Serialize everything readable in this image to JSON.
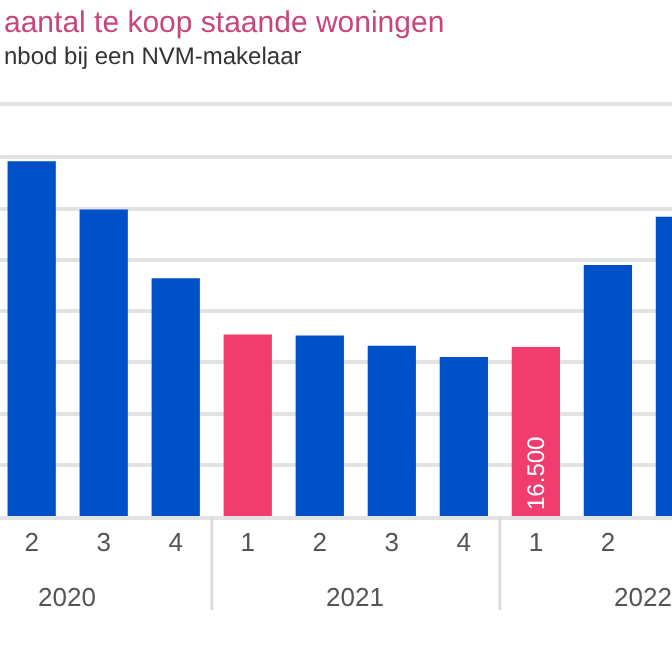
{
  "chart_data": {
    "type": "bar",
    "title": "aantal te koop staande woningen",
    "subtitle": "nbod bij een NVM-makelaar",
    "categories": [
      "2",
      "3",
      "4",
      "1",
      "2",
      "3",
      "4",
      "1",
      "2",
      null
    ],
    "values": [
      34600,
      29900,
      23200,
      17700,
      17600,
      16600,
      15500,
      16500,
      24500,
      29200
    ],
    "colors": [
      "#0050c8",
      "#0050c8",
      "#0050c8",
      "#f03c6e",
      "#0050c8",
      "#0050c8",
      "#0050c8",
      "#f03c6e",
      "#0050c8",
      "#0050c8"
    ],
    "value_labels": [
      null,
      null,
      null,
      null,
      null,
      null,
      null,
      "16.500",
      null,
      null
    ],
    "annotations": [
      "2020",
      "2021",
      "2022"
    ],
    "ylim": [
      0,
      40000
    ],
    "yticks": [
      {
        "value": 0,
        "label": null
      },
      {
        "value": 5000,
        "label": null
      },
      {
        "value": 10000,
        "label": null
      },
      {
        "value": 15000,
        "label": null
      },
      {
        "value": 20000,
        "label": null
      },
      {
        "value": 25000,
        "label": null
      },
      {
        "value": 30000,
        "label": null
      },
      {
        "value": 35000,
        "label": null
      },
      {
        "value": 40000,
        "label": null
      }
    ],
    "tick_labels": "x",
    "grid": "y"
  }
}
